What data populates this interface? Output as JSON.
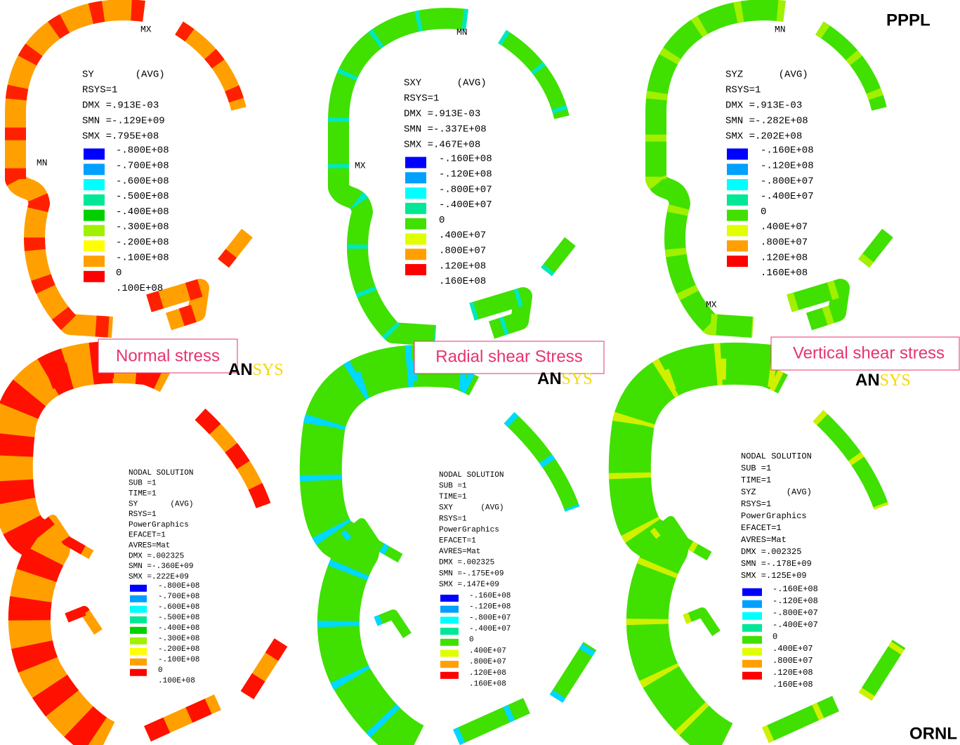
{
  "corner_labels": {
    "top": "PPPL",
    "bottom": "ORNL"
  },
  "captions": [
    "Normal stress",
    "Radial shear Stress",
    "Vertical shear stress"
  ],
  "logo": [
    "AN",
    "SYS"
  ],
  "top_panels": [
    {
      "header": [
        "SY       (AVG)",
        "RSYS=1",
        "DMX =.913E-03",
        "SMN =-.129E+09",
        "SMX =.795E+08"
      ],
      "legend": [
        "-.800E+08",
        "-.700E+08",
        "-.600E+08",
        "-.500E+08",
        "-.400E+08",
        "-.300E+08",
        "-.200E+08",
        "-.100E+08",
        "0",
        ".100E+08"
      ],
      "colors": [
        "#0000ff",
        "#00a0ff",
        "#00ffff",
        "#00e896",
        "#00d000",
        "#a0f000",
        "#ffff00",
        "#ffa000",
        "#ff0000"
      ],
      "markers": [
        "MX",
        "MN"
      ]
    },
    {
      "header": [
        "SXY      (AVG)",
        "RSYS=1",
        "DMX =.913E-03",
        "SMN =-.337E+08",
        "SMX =.467E+08"
      ],
      "legend": [
        "-.160E+08",
        "-.120E+08",
        "-.800E+07",
        "-.400E+07",
        "0",
        ".400E+07",
        ".800E+07",
        ".120E+08",
        ".160E+08"
      ],
      "colors": [
        "#0000ff",
        "#00a0ff",
        "#00ffff",
        "#00e896",
        "#40e000",
        "#e0ff00",
        "#ffa000",
        "#ff0000"
      ],
      "markers": [
        "MN",
        "MX"
      ]
    },
    {
      "header": [
        "SYZ      (AVG)",
        "RSYS=1",
        "DMX =.913E-03",
        "SMN =-.282E+08",
        "SMX =.202E+08"
      ],
      "legend": [
        "-.160E+08",
        "-.120E+08",
        "-.800E+07",
        "-.400E+07",
        "0",
        ".400E+07",
        ".800E+07",
        ".120E+08",
        ".160E+08"
      ],
      "colors": [
        "#0000ff",
        "#00a0ff",
        "#00ffff",
        "#00e896",
        "#40e000",
        "#e0ff00",
        "#ffa000",
        "#ff0000"
      ],
      "markers": [
        "MN",
        "MX"
      ]
    }
  ],
  "bottom_panels": [
    {
      "header": [
        "NODAL SOLUTION",
        "SUB =1",
        "TIME=1",
        "SY       (AVG)",
        "RSYS=1",
        "PowerGraphics",
        "EFACET=1",
        "AVRES=Mat",
        "DMX =.002325",
        "SMN =-.360E+09",
        "SMX =.222E+09"
      ],
      "legend": [
        "-.800E+08",
        "-.700E+08",
        "-.600E+08",
        "-.500E+08",
        "-.400E+08",
        "-.300E+08",
        "-.200E+08",
        "-.100E+08",
        "0",
        ".100E+08"
      ],
      "colors": [
        "#0000ff",
        "#00a0ff",
        "#00ffff",
        "#00e896",
        "#00d000",
        "#a0f000",
        "#ffff00",
        "#ffa000",
        "#ff0000"
      ]
    },
    {
      "header": [
        "NODAL SOLUTION",
        "SUB =1",
        "TIME=1",
        "SXY      (AVG)",
        "RSYS=1",
        "PowerGraphics",
        "EFACET=1",
        "AVRES=Mat",
        "DMX =.002325",
        "SMN =-.175E+09",
        "SMX =.147E+09"
      ],
      "legend": [
        "-.160E+08",
        "-.120E+08",
        "-.800E+07",
        "-.400E+07",
        "0",
        ".400E+07",
        ".800E+07",
        ".120E+08",
        ".160E+08"
      ],
      "colors": [
        "#0000ff",
        "#00a0ff",
        "#00ffff",
        "#00e896",
        "#40e000",
        "#e0ff00",
        "#ffa000",
        "#ff0000"
      ]
    },
    {
      "header": [
        "NODAL SOLUTION",
        "SUB =1",
        "TIME=1",
        "SYZ      (AVG)",
        "RSYS=1",
        "PowerGraphics",
        "EFACET=1",
        "AVRES=Mat",
        "DMX =.002325",
        "SMN =-.178E+09",
        "SMX =.125E+09"
      ],
      "legend": [
        "-.160E+08",
        "-.120E+08",
        "-.800E+07",
        "-.400E+07",
        "0",
        ".400E+07",
        ".800E+07",
        ".120E+08",
        ".160E+08"
      ],
      "colors": [
        "#0000ff",
        "#00a0ff",
        "#00ffff",
        "#00e896",
        "#40e000",
        "#e0ff00",
        "#ffa000",
        "#ff0000"
      ]
    }
  ]
}
